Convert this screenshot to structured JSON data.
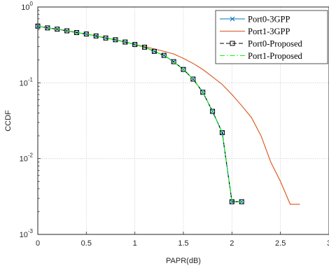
{
  "chart_data": {
    "type": "line",
    "title": "",
    "xlabel": "PAPR(dB)",
    "ylabel": "CCDF",
    "xlim": [
      0,
      3
    ],
    "ylim": [
      0.001,
      1
    ],
    "yscale": "log",
    "grid": true,
    "legend_position": "top-right",
    "x_ticks": [
      0,
      0.5,
      1,
      1.5,
      2,
      2.5,
      3
    ],
    "x_tick_labels": [
      "0",
      "0.5",
      "1",
      "1.5",
      "2",
      "2.5",
      "3"
    ],
    "y_ticks": [
      0.001,
      0.01,
      0.1,
      1
    ],
    "y_tick_labels": [
      {
        "base": "10",
        "exp": "-3"
      },
      {
        "base": "10",
        "exp": "-2"
      },
      {
        "base": "10",
        "exp": "-1"
      },
      {
        "base": "10",
        "exp": "0"
      }
    ],
    "series": [
      {
        "name": "Port0-3GPP",
        "color": "#0072bd",
        "line_style": "solid",
        "marker": "x",
        "x": [
          0,
          0.1,
          0.2,
          0.3,
          0.4,
          0.5,
          0.6,
          0.7,
          0.8,
          0.9,
          1.0,
          1.1,
          1.2,
          1.3,
          1.4,
          1.5,
          1.6,
          1.7,
          1.8,
          1.9,
          2.0,
          2.1
        ],
        "y": [
          0.56,
          0.53,
          0.51,
          0.485,
          0.46,
          0.44,
          0.415,
          0.39,
          0.37,
          0.345,
          0.32,
          0.295,
          0.26,
          0.23,
          0.19,
          0.15,
          0.112,
          0.075,
          0.042,
          0.022,
          0.0027,
          0.0027
        ]
      },
      {
        "name": "Port1-3GPP",
        "color": "#d95319",
        "line_style": "solid",
        "marker": "none",
        "x": [
          0,
          0.1,
          0.2,
          0.3,
          0.4,
          0.5,
          0.6,
          0.7,
          0.8,
          0.9,
          1.0,
          1.1,
          1.2,
          1.3,
          1.4,
          1.5,
          1.6,
          1.7,
          1.8,
          1.9,
          2.0,
          2.1,
          2.2,
          2.3,
          2.4,
          2.5,
          2.6,
          2.7
        ],
        "y": [
          0.56,
          0.53,
          0.51,
          0.485,
          0.46,
          0.44,
          0.415,
          0.39,
          0.37,
          0.345,
          0.32,
          0.3,
          0.28,
          0.26,
          0.24,
          0.21,
          0.18,
          0.15,
          0.12,
          0.095,
          0.07,
          0.05,
          0.035,
          0.02,
          0.009,
          0.005,
          0.0025,
          0.0025
        ]
      },
      {
        "name": "Port0-Proposed",
        "color": "#000000",
        "line_style": "dashed",
        "marker": "square",
        "x": [
          0,
          0.1,
          0.2,
          0.3,
          0.4,
          0.5,
          0.6,
          0.7,
          0.8,
          0.9,
          1.0,
          1.1,
          1.2,
          1.3,
          1.4,
          1.5,
          1.6,
          1.7,
          1.8,
          1.9,
          2.0,
          2.1
        ],
        "y": [
          0.56,
          0.53,
          0.51,
          0.485,
          0.46,
          0.44,
          0.415,
          0.39,
          0.37,
          0.345,
          0.32,
          0.295,
          0.26,
          0.23,
          0.19,
          0.15,
          0.112,
          0.075,
          0.042,
          0.022,
          0.0027,
          0.0027
        ]
      },
      {
        "name": "Port1-Proposed",
        "color": "#00ff00",
        "line_style": "dashdot",
        "marker": "none",
        "x": [
          0,
          0.1,
          0.2,
          0.3,
          0.4,
          0.5,
          0.6,
          0.7,
          0.8,
          0.9,
          1.0,
          1.1,
          1.2,
          1.3,
          1.4,
          1.5,
          1.6,
          1.7,
          1.8,
          1.9,
          2.0,
          2.1
        ],
        "y": [
          0.56,
          0.53,
          0.51,
          0.485,
          0.46,
          0.44,
          0.415,
          0.39,
          0.37,
          0.345,
          0.32,
          0.295,
          0.26,
          0.23,
          0.19,
          0.15,
          0.112,
          0.075,
          0.042,
          0.022,
          0.0027,
          0.0027
        ]
      }
    ]
  }
}
